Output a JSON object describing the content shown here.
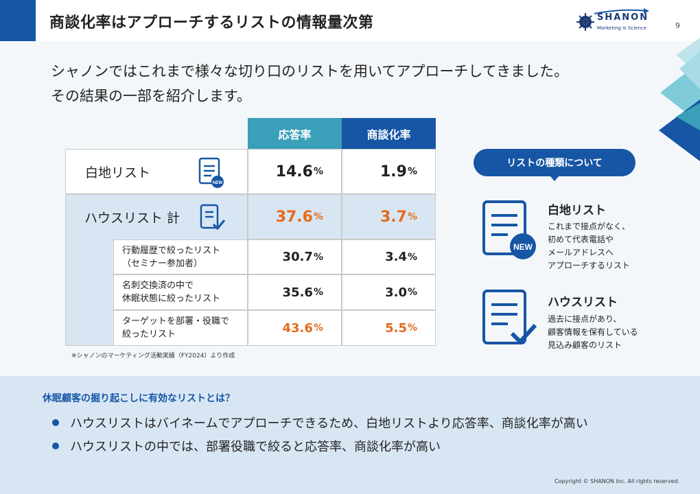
{
  "header": {
    "title": "商談化率はアプローチするリストの情報量次第",
    "logo_name": "SHANON",
    "logo_tagline": "Marketing is Science",
    "page_number": "9"
  },
  "intro": {
    "line1": "シャノンではこれまで様々な切り口のリストを用いてアプローチしてきました。",
    "line2": "その結果の一部を紹介します。"
  },
  "table": {
    "col_response": "応答率",
    "col_conversion": "商談化率",
    "rows": [
      {
        "label": "白地リスト",
        "response": "14.6",
        "conversion": "1.9"
      },
      {
        "label": "ハウスリスト 計",
        "response": "37.6",
        "conversion": "3.7"
      }
    ],
    "sub_rows": [
      {
        "line1": "行動履歴で絞ったリスト",
        "line2": "（セミナー参加者）",
        "response": "30.7",
        "conversion": "3.4"
      },
      {
        "line1": "名刺交換済の中で",
        "line2": "休眠状態に絞ったリスト",
        "response": "35.6",
        "conversion": "3.0"
      },
      {
        "line1": "ターゲットを部署・役職で",
        "line2": "絞ったリスト",
        "response": "43.6",
        "conversion": "5.5"
      }
    ],
    "unit": "%",
    "note": "※シャノンのマーケティング活動実績（FY2024）より作成"
  },
  "legend": {
    "badge": "リストの種類について",
    "new_label": "NEW",
    "items": [
      {
        "title": "白地リスト",
        "desc1": "これまで接点がなく、",
        "desc2": "初めて代表電話や",
        "desc3": "メールアドレスへ",
        "desc4": "アプローチするリスト"
      },
      {
        "title": "ハウスリスト",
        "desc1": "過去に接点があり、",
        "desc2": "顧客情報を保有している",
        "desc3": "見込み顧客のリスト"
      }
    ]
  },
  "summary": {
    "question": "休眠顧客の掘り起こしに有効なリストとは？",
    "bullets": [
      "ハウスリストはバイネームでアプローチできるため、白地リストより応答率、商談化率が高い",
      "ハウスリストの中では、部署役職で絞ると応答率、商談化率が高い"
    ]
  },
  "footer": {
    "copyright": "Copyright © SHANON Inc. All rights reserved."
  },
  "colors": {
    "brand_blue": "#1656a5",
    "teal": "#3a9fb8",
    "orange": "#e46a1a",
    "house_bg": "#d8e6f4"
  }
}
